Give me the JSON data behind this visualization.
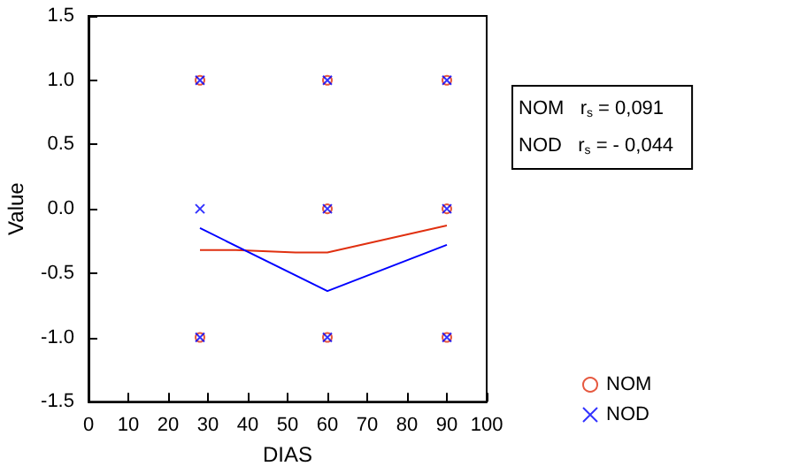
{
  "chart_data": {
    "type": "scatter",
    "xlabel": "DIAS",
    "ylabel": "Value",
    "xlim": [
      0,
      100
    ],
    "xticks": [
      0,
      10,
      20,
      30,
      40,
      50,
      60,
      70,
      80,
      90,
      100
    ],
    "ylim": [
      -1.5,
      1.5
    ],
    "yticks": [
      {
        "value": -1.5,
        "label": "-1.5"
      },
      {
        "value": -1,
        "label": "-1.0"
      },
      {
        "value": -0.5,
        "label": "-0.5"
      },
      {
        "value": 0,
        "label": "0.0"
      },
      {
        "value": 0.5,
        "label": "0.5"
      },
      {
        "value": 1,
        "label": "1.0"
      },
      {
        "value": 1.5,
        "label": "1.5"
      }
    ],
    "grid": false,
    "legend": "bottom right",
    "annotations": [
      "NOM   r$_{s}$ = 0,091",
      "NOD   r$_{s}$ = - 0,044"
    ],
    "series": [
      {
        "name": "NOM",
        "color": "#e03010",
        "marker": "circle",
        "x": [
          28,
          28,
          60,
          60,
          60,
          90,
          90,
          90
        ],
        "values": [
          1,
          -1,
          1,
          0,
          -1,
          1,
          0,
          -1
        ]
      },
      {
        "name": "NOD",
        "color": "#0000ff",
        "marker": "cross",
        "x": [
          28,
          28,
          28,
          60,
          60,
          60,
          90,
          90,
          90
        ],
        "values": [
          1,
          0,
          -1,
          1,
          0,
          -1,
          1,
          0,
          -1
        ]
      },
      {
        "type": "line",
        "color": "#e03010",
        "x": [
          28,
          37,
          52,
          60,
          90
        ],
        "values": [
          -0.32,
          -0.32,
          -0.34,
          -0.34,
          -0.13
        ]
      },
      {
        "type": "line",
        "color": "#0000ff",
        "x": [
          28,
          60,
          90
        ],
        "values": [
          -0.15,
          -0.64,
          -0.28
        ]
      }
    ]
  }
}
